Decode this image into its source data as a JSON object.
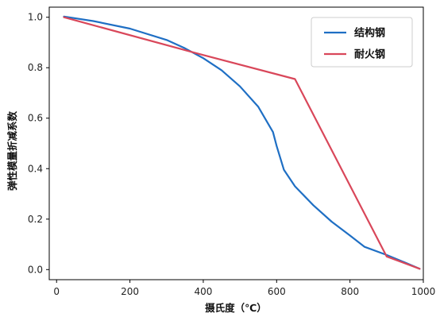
{
  "chart_data": {
    "type": "line",
    "xlabel": "摄氏度（℃）",
    "ylabel": "弹性模量折减系数",
    "xlim": [
      -20,
      1000
    ],
    "ylim": [
      -0.04,
      1.04
    ],
    "xticks": [
      0,
      200,
      400,
      600,
      800,
      1000
    ],
    "xtick_labels": [
      "0",
      "200",
      "400",
      "600",
      "800",
      "1000"
    ],
    "yticks": [
      0.0,
      0.2,
      0.4,
      0.6,
      0.8,
      1.0
    ],
    "ytick_labels": [
      "0.0",
      "0.2",
      "0.4",
      "0.6",
      "0.8",
      "1.0"
    ],
    "grid": false,
    "legend_position": "top-right",
    "series": [
      {
        "name": "结构钢",
        "color": "#1f6fc4",
        "points": [
          [
            20,
            1.003
          ],
          [
            100,
            0.985
          ],
          [
            200,
            0.955
          ],
          [
            300,
            0.91
          ],
          [
            350,
            0.877
          ],
          [
            400,
            0.838
          ],
          [
            450,
            0.79
          ],
          [
            500,
            0.726
          ],
          [
            550,
            0.645
          ],
          [
            590,
            0.545
          ],
          [
            600,
            0.49
          ],
          [
            620,
            0.395
          ],
          [
            650,
            0.33
          ],
          [
            700,
            0.255
          ],
          [
            750,
            0.19
          ],
          [
            800,
            0.135
          ],
          [
            840,
            0.09
          ],
          [
            900,
            0.058
          ],
          [
            950,
            0.028
          ],
          [
            990,
            0.003
          ]
        ]
      },
      {
        "name": "耐火钢",
        "color": "#d9475a",
        "points": [
          [
            20,
            1.0
          ],
          [
            380,
            0.858
          ],
          [
            650,
            0.755
          ],
          [
            900,
            0.052
          ],
          [
            990,
            0.003
          ]
        ]
      }
    ]
  }
}
